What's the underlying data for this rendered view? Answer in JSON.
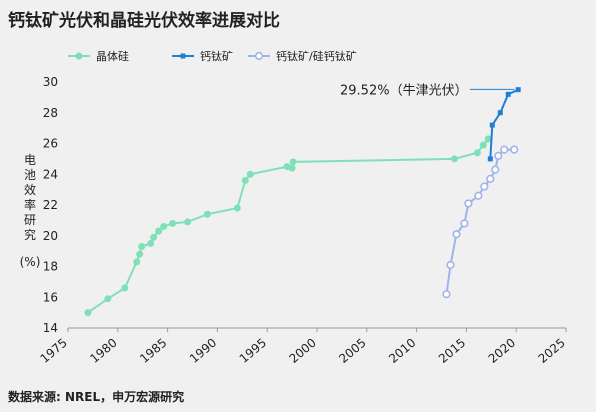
{
  "title": "钙钛矿光伏和晶硅光伏效率进展对比",
  "source": "数据来源: NREL，申万宏源研究",
  "colors": {
    "silicon": "#7fe0b8",
    "perovskite": "#1f7fd6",
    "tandem": "#9fb4ea",
    "axis": "#999999"
  },
  "chart_data": {
    "type": "line",
    "xlabel": "",
    "ylabel": "电池效率研究(%)",
    "xlim": [
      1975,
      2025
    ],
    "ylim": [
      14,
      30
    ],
    "xticks": [
      1975,
      1980,
      1985,
      1990,
      1995,
      2000,
      2005,
      2010,
      2015,
      2020,
      2025
    ],
    "yticks": [
      14,
      16,
      18,
      20,
      22,
      24,
      26,
      28,
      30
    ],
    "legend": "top-left",
    "series": [
      {
        "name": "晶体硅",
        "marker": "circle",
        "x": [
          1977,
          1979,
          1980.7,
          1981.9,
          1982.2,
          1982.4,
          1983.3,
          1983.6,
          1984.1,
          1984.6,
          1985.5,
          1987,
          1989,
          1992,
          1992.8,
          1993.3,
          1997,
          1997.5,
          1997.6,
          2013.8,
          2016.1,
          2016.7,
          2017.2
        ],
        "y": [
          15.0,
          15.9,
          16.6,
          18.3,
          18.8,
          19.3,
          19.5,
          19.9,
          20.3,
          20.6,
          20.8,
          20.9,
          21.4,
          21.8,
          23.6,
          24.0,
          24.5,
          24.4,
          24.8,
          25.0,
          25.4,
          25.9,
          26.3
        ]
      },
      {
        "name": "钙钛矿",
        "marker": "square",
        "x": [
          2017.4,
          2017.6,
          2018.4,
          2019.2,
          2020.2
        ],
        "y": [
          25.0,
          27.2,
          28.0,
          29.2,
          29.5
        ]
      },
      {
        "name": "钙钛矿/硅钙钛矿",
        "marker": "hollow-circle",
        "x": [
          2013.0,
          2013.4,
          2014.0,
          2014.8,
          2015.2,
          2016.2,
          2016.8,
          2017.4,
          2017.9,
          2018.2,
          2018.8,
          2019.8
        ],
        "y": [
          16.2,
          18.1,
          20.1,
          20.8,
          22.1,
          22.6,
          23.2,
          23.7,
          24.3,
          25.2,
          25.6,
          25.6
        ]
      }
    ],
    "annotations": [
      {
        "text": "29.52%（牛津光伏）",
        "x": 2020.2,
        "y": 29.52
      }
    ]
  }
}
